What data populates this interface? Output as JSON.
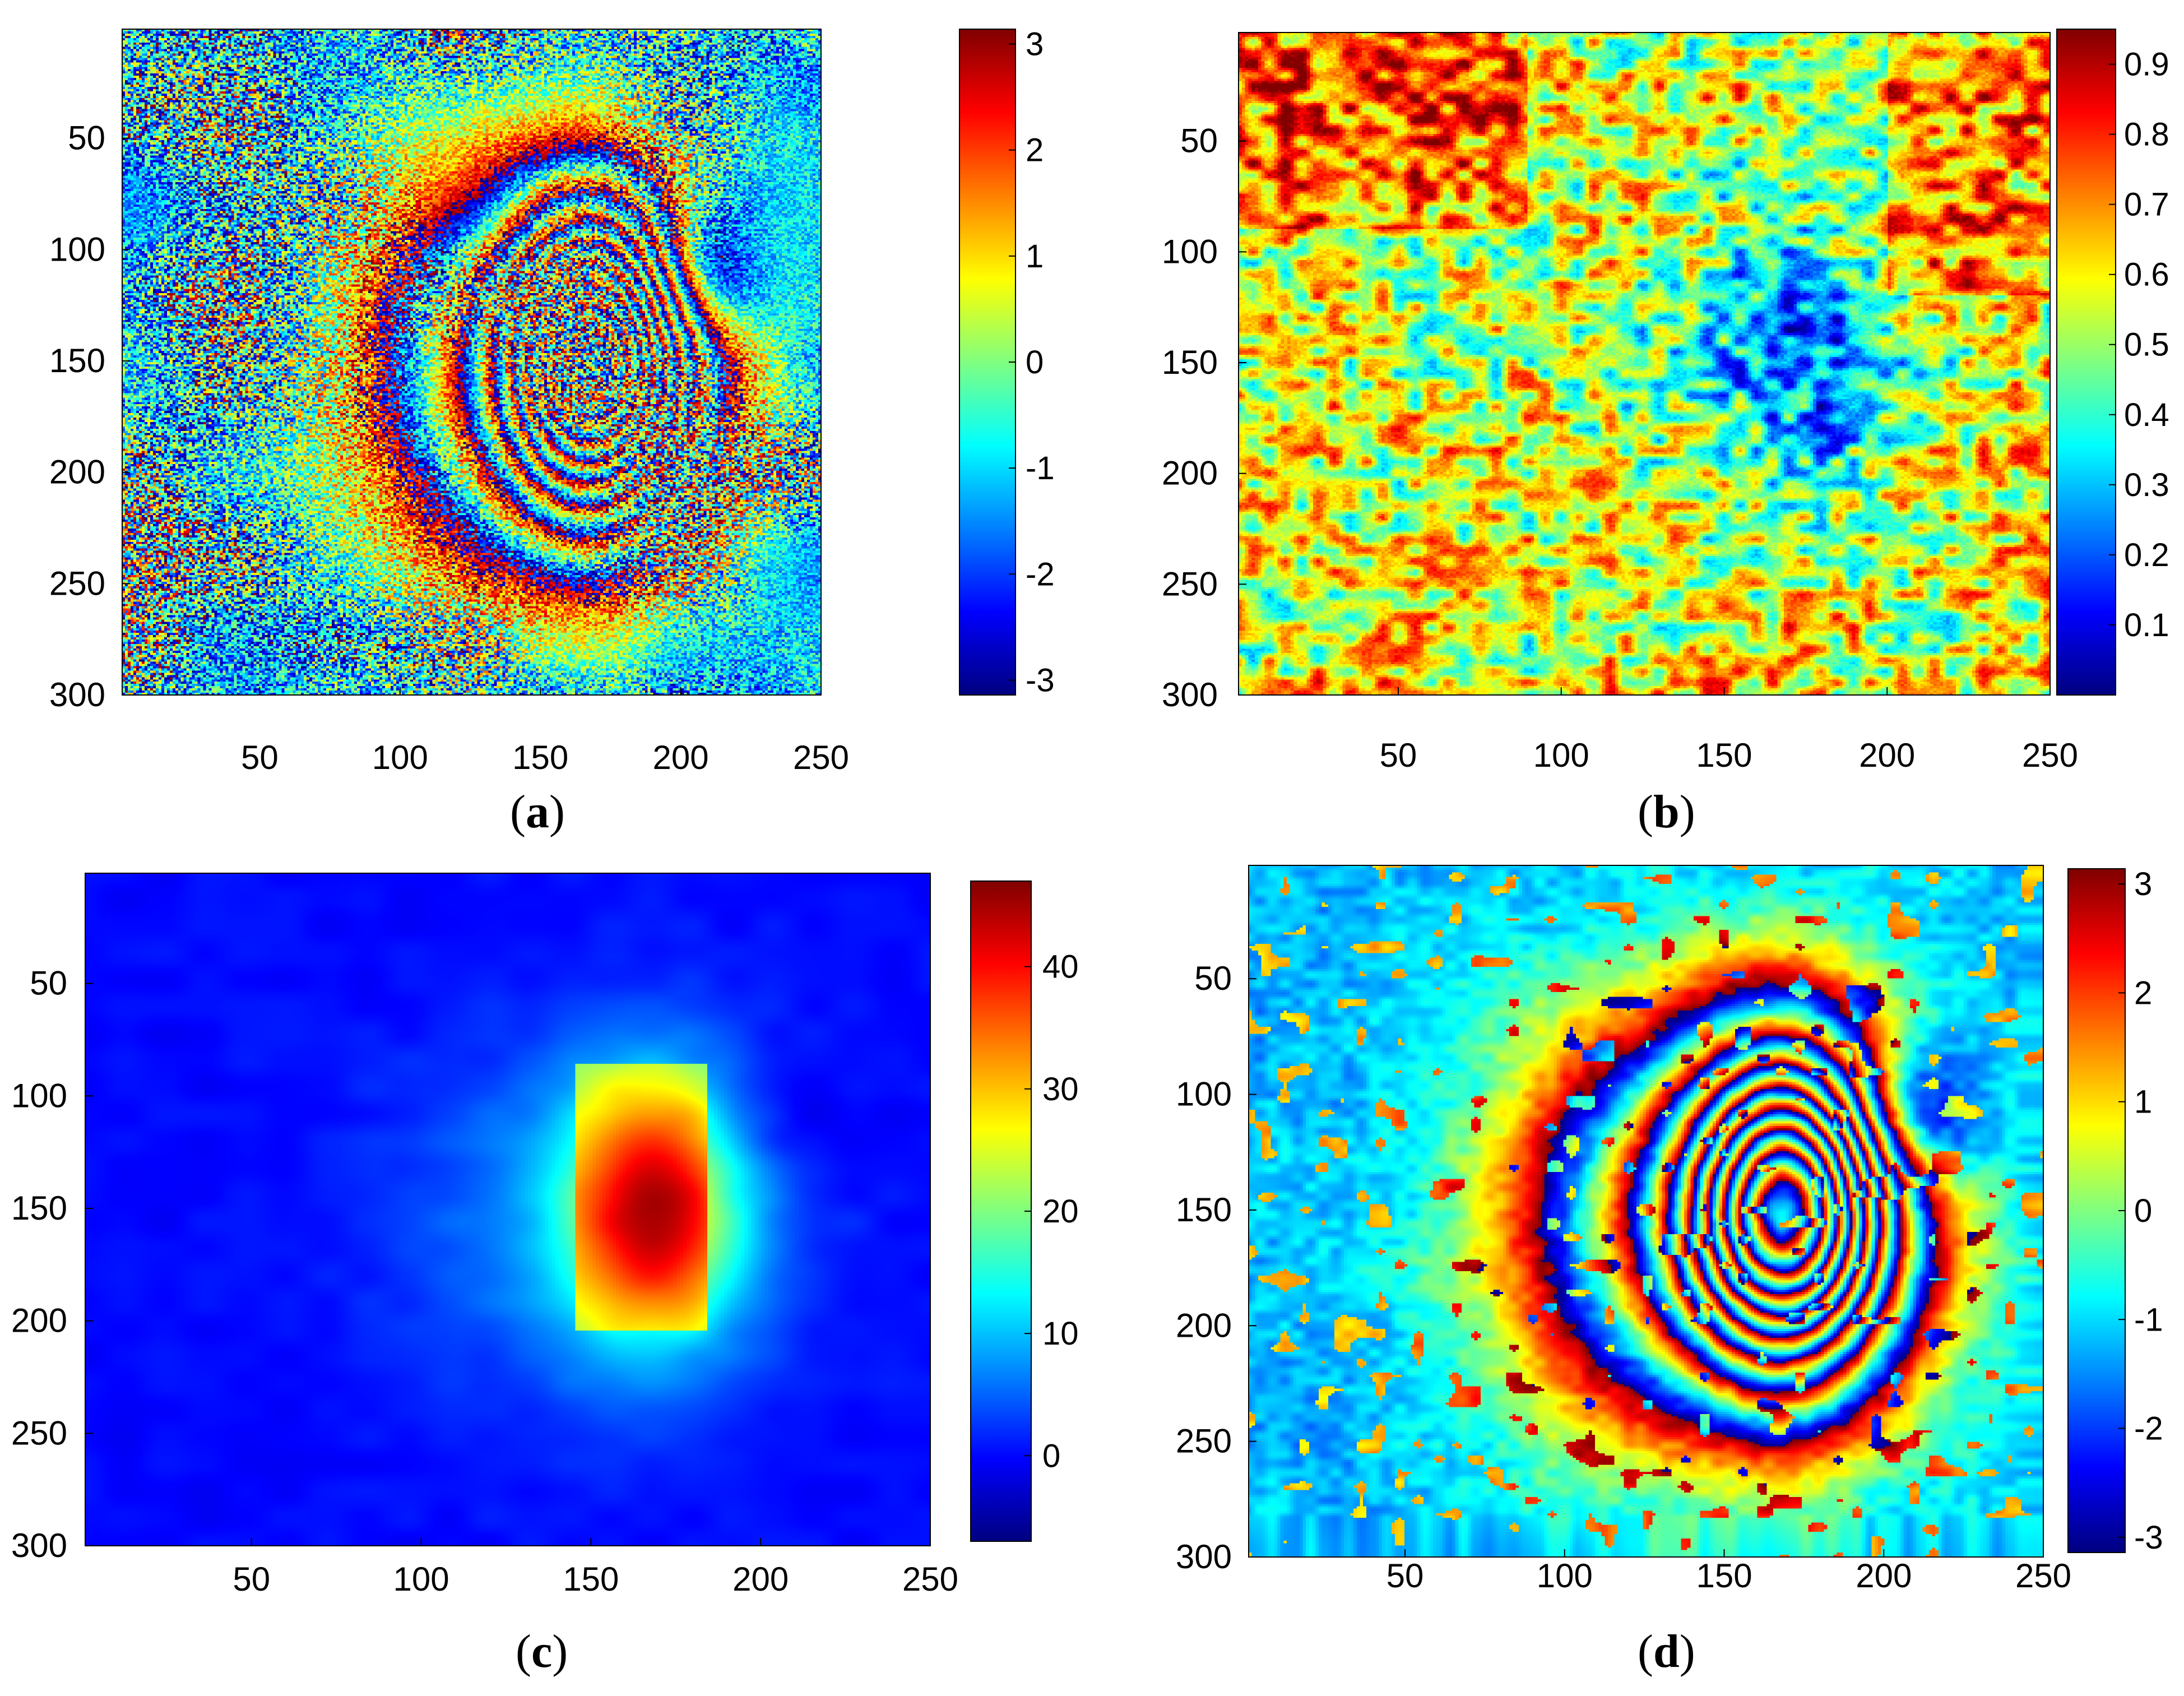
{
  "figure": {
    "panels": [
      {
        "id": "a",
        "caption_open": "(",
        "caption_letter": "a",
        "caption_close": ")"
      },
      {
        "id": "b",
        "caption_open": "(",
        "caption_letter": "b",
        "caption_close": ")"
      },
      {
        "id": "c",
        "caption_open": "(",
        "caption_letter": "c",
        "caption_close": ")"
      },
      {
        "id": "d",
        "caption_open": "(",
        "caption_letter": "d",
        "caption_close": ")"
      }
    ]
  },
  "chart_data": [
    {
      "panel": "a",
      "type": "heatmap",
      "colormap": "jet",
      "pattern": "noisy-interferogram",
      "x_ticks": [
        50,
        100,
        150,
        200,
        250
      ],
      "y_ticks": [
        50,
        100,
        150,
        200,
        250,
        300
      ],
      "xlim": [
        1,
        250
      ],
      "ylim": [
        1,
        300
      ],
      "y_reversed": true,
      "colorbar": {
        "ticks": [
          3,
          2,
          1,
          0,
          -1,
          -2,
          -3
        ],
        "range": [
          -3.14,
          3.14
        ]
      }
    },
    {
      "panel": "b",
      "type": "heatmap",
      "colormap": "jet",
      "pattern": "coherence",
      "x_ticks": [
        50,
        100,
        150,
        200,
        250
      ],
      "y_ticks": [
        50,
        100,
        150,
        200,
        250,
        300
      ],
      "xlim": [
        1,
        250
      ],
      "ylim": [
        1,
        300
      ],
      "y_reversed": true,
      "colorbar": {
        "ticks": [
          0.9,
          0.8,
          0.7,
          0.6,
          0.5,
          0.4,
          0.3,
          0.2,
          0.1
        ],
        "range": [
          0,
          0.95
        ]
      }
    },
    {
      "panel": "c",
      "type": "heatmap",
      "colormap": "jet",
      "pattern": "unwrapped-phase",
      "x_ticks": [
        50,
        100,
        150,
        200,
        250
      ],
      "y_ticks": [
        50,
        100,
        150,
        200,
        250,
        300
      ],
      "xlim": [
        1,
        250
      ],
      "ylim": [
        1,
        300
      ],
      "y_reversed": true,
      "colorbar": {
        "ticks": [
          40,
          30,
          20,
          10,
          0
        ],
        "range": [
          -7,
          47
        ]
      }
    },
    {
      "panel": "d",
      "type": "heatmap",
      "colormap": "jet",
      "pattern": "filtered-interferogram",
      "x_ticks": [
        50,
        100,
        150,
        200,
        250
      ],
      "y_ticks": [
        50,
        100,
        150,
        200,
        250,
        300
      ],
      "xlim": [
        1,
        250
      ],
      "ylim": [
        1,
        300
      ],
      "y_reversed": true,
      "colorbar": {
        "ticks": [
          3,
          2,
          1,
          0,
          -1,
          -2,
          -3
        ],
        "range": [
          -3.14,
          3.14
        ]
      }
    }
  ]
}
